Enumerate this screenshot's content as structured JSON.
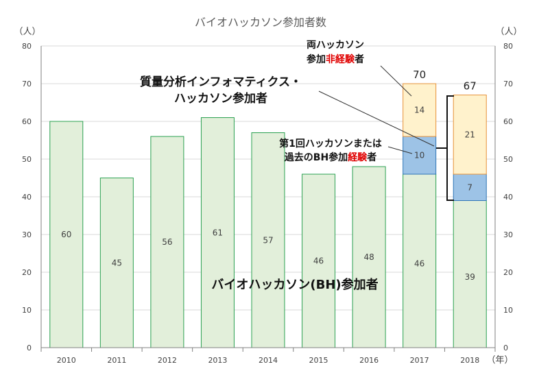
{
  "chart_data": {
    "type": "bar",
    "stacked": true,
    "title": "バイオハッカソン参加者数",
    "y_unit_left": "（人）",
    "y_unit_right": "（人）",
    "x_unit": "（年）",
    "ylim": [
      0,
      80
    ],
    "yticks": [
      0,
      10,
      20,
      30,
      40,
      50,
      60,
      70,
      80
    ],
    "categories": [
      "2010",
      "2011",
      "2012",
      "2013",
      "2014",
      "2015",
      "2016",
      "2017",
      "2018"
    ],
    "series": [
      {
        "key": "bh",
        "values": [
          60,
          45,
          56,
          61,
          57,
          46,
          48,
          46,
          39
        ],
        "color": "#e2efda",
        "stroke": "#2aa050"
      },
      {
        "key": "exp",
        "values": [
          0,
          0,
          0,
          0,
          0,
          0,
          0,
          10,
          7
        ],
        "color": "#9dc3e6",
        "stroke": "#2e75b6"
      },
      {
        "key": "new",
        "values": [
          0,
          0,
          0,
          0,
          0,
          0,
          0,
          14,
          21
        ],
        "color": "#fff2cc",
        "stroke": "#e69138"
      }
    ],
    "totals": [
      null,
      null,
      null,
      null,
      null,
      null,
      null,
      70,
      67
    ],
    "annotations": {
      "main_label": "バイオハッカソン(BH)参加者",
      "ms_line1": "質量分析インフォマティクス・",
      "ms_line2": "ハッカソン参加者",
      "new_line1": "両ハッカソン",
      "new_line2_a": "参加",
      "new_line2_b": "非経験",
      "new_line2_c": "者",
      "exp_line1": "第1回ハッカソンまたは",
      "exp_line2_a": "過去のBH参加",
      "exp_line2_b": "経験",
      "exp_line2_c": "者"
    }
  }
}
